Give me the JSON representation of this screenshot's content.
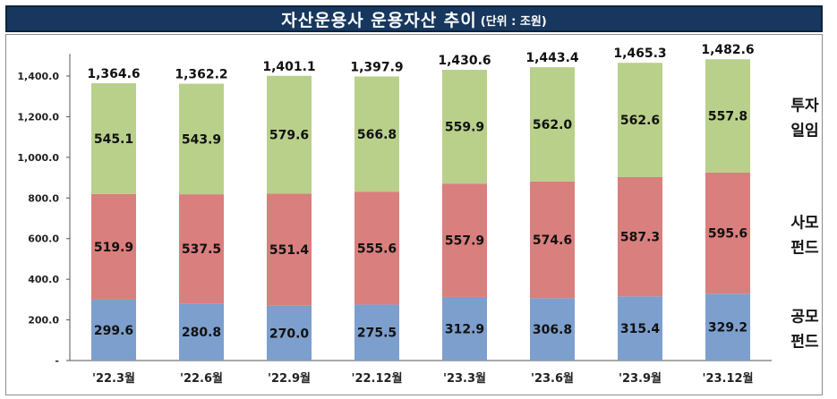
{
  "title": {
    "main": "자산운용사 운용자산 추이",
    "unit": "(단위 : 조원)",
    "bg_color": "#17375e"
  },
  "chart_data": {
    "type": "bar",
    "stacked": true,
    "categories": [
      "'22.3월",
      "'22.6월",
      "'22.9월",
      "'22.12월",
      "'23.3월",
      "'23.6월",
      "'23.9월",
      "'23.12월"
    ],
    "series": [
      {
        "name": "공모 펀드",
        "label_lines": [
          "공모",
          "펀드"
        ],
        "color": "#7d9fce",
        "values": [
          299.6,
          280.8,
          270.0,
          275.5,
          312.9,
          306.8,
          315.4,
          329.2
        ],
        "labels": [
          "299.6",
          "280.8",
          "270.0",
          "275.5",
          "312.9",
          "306.8",
          "315.4",
          "329.2"
        ]
      },
      {
        "name": "사모 펀드",
        "label_lines": [
          "사모",
          "펀드"
        ],
        "color": "#d97f7d",
        "values": [
          519.9,
          537.5,
          551.4,
          555.6,
          557.9,
          574.6,
          587.3,
          595.6
        ],
        "labels": [
          "519.9",
          "537.5",
          "551.4",
          "555.6",
          "557.9",
          "574.6",
          "587.3",
          "595.6"
        ]
      },
      {
        "name": "투자 일임",
        "label_lines": [
          "투자",
          "일임"
        ],
        "color": "#b9d08b",
        "values": [
          545.1,
          543.9,
          579.6,
          566.8,
          559.9,
          562.0,
          562.6,
          557.8
        ],
        "labels": [
          "545.1",
          "543.9",
          "579.6",
          "566.8",
          "559.9",
          "562.0",
          "562.6",
          "557.8"
        ]
      }
    ],
    "totals": [
      1364.6,
      1362.2,
      1401.1,
      1397.9,
      1430.6,
      1443.4,
      1465.3,
      1482.6
    ],
    "total_labels": [
      "1,364.6",
      "1,362.2",
      "1,401.1",
      "1,397.9",
      "1,430.6",
      "1,443.4",
      "1,465.3",
      "1,482.6"
    ],
    "ylim": [
      0,
      1500
    ],
    "y_ticks": [
      0,
      200,
      400,
      600,
      800,
      1000,
      1200,
      1400
    ],
    "y_tick_labels": [
      "-",
      "200.0",
      "400.0",
      "600.0",
      "800.0",
      "1,000.0",
      "1,200.0",
      "1,400.0"
    ],
    "grid": false,
    "legend": "right, inline labels"
  }
}
